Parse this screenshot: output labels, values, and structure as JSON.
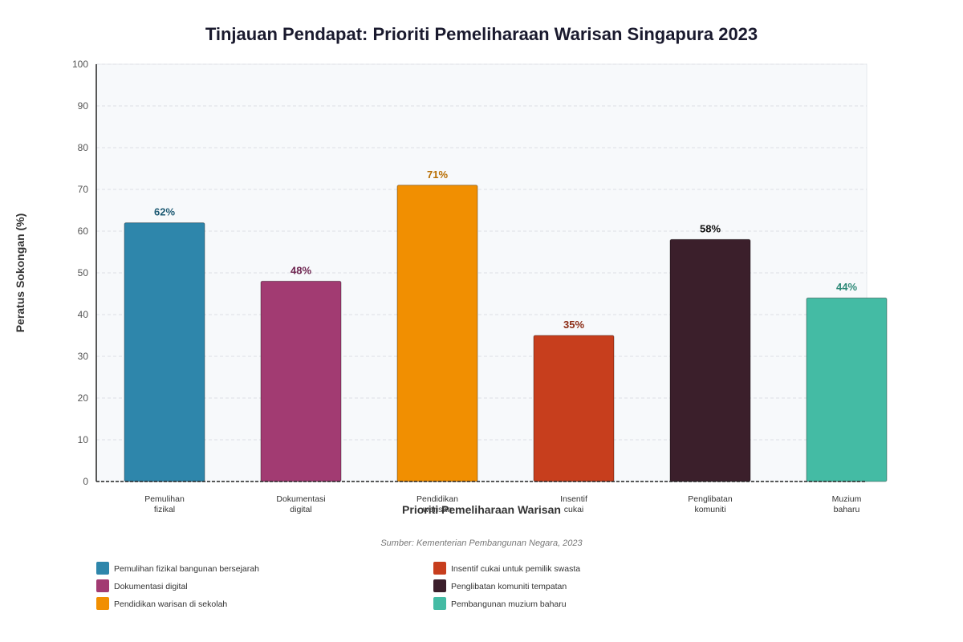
{
  "chart_data": {
    "type": "bar",
    "title": "Tinjauan Pendapat: Prioriti Pemeliharaan Warisan Singapura 2023",
    "xlabel": "Prioriti Pemeliharaan Warisan",
    "ylabel": "Peratus Sokongan (%)",
    "ylim": [
      0,
      100
    ],
    "yticks": [
      0,
      10,
      20,
      30,
      40,
      50,
      60,
      70,
      80,
      90,
      100
    ],
    "grid": true,
    "categories": [
      [
        "Pemulihan",
        "fizikal"
      ],
      [
        "Dokumentasi",
        "digital"
      ],
      [
        "Pendidikan",
        "warisan"
      ],
      [
        "Insentif",
        "cukai"
      ],
      [
        "Penglibatan",
        "komuniti"
      ],
      [
        "Muzium",
        "baharu"
      ]
    ],
    "values": [
      62,
      48,
      71,
      35,
      58,
      44
    ],
    "value_labels": [
      "62%",
      "48%",
      "71%",
      "35%",
      "58%",
      "44%"
    ],
    "colors": [
      "#2e86ab",
      "#a23b72",
      "#f18f01",
      "#c73e1d",
      "#3b1f2b",
      "#44bba4"
    ],
    "label_colors": [
      "#1d5a73",
      "#6e2550",
      "#b86d00",
      "#8b2b14",
      "#111111",
      "#2e8a78"
    ],
    "source": "Sumber: Kementerian Pembangunan Negara, 2023",
    "legend_position": "bottom",
    "legend": [
      {
        "label": "Pemulihan fizikal bangunan bersejarah",
        "color": "#2e86ab"
      },
      {
        "label": "Dokumentasi digital",
        "color": "#a23b72"
      },
      {
        "label": "Pendidikan warisan di sekolah",
        "color": "#f18f01"
      },
      {
        "label": "Insentif cukai untuk pemilik swasta",
        "color": "#c73e1d"
      },
      {
        "label": "Penglibatan komuniti tempatan",
        "color": "#3b1f2b"
      },
      {
        "label": "Pembangunan muzium baharu",
        "color": "#44bba4"
      }
    ]
  }
}
